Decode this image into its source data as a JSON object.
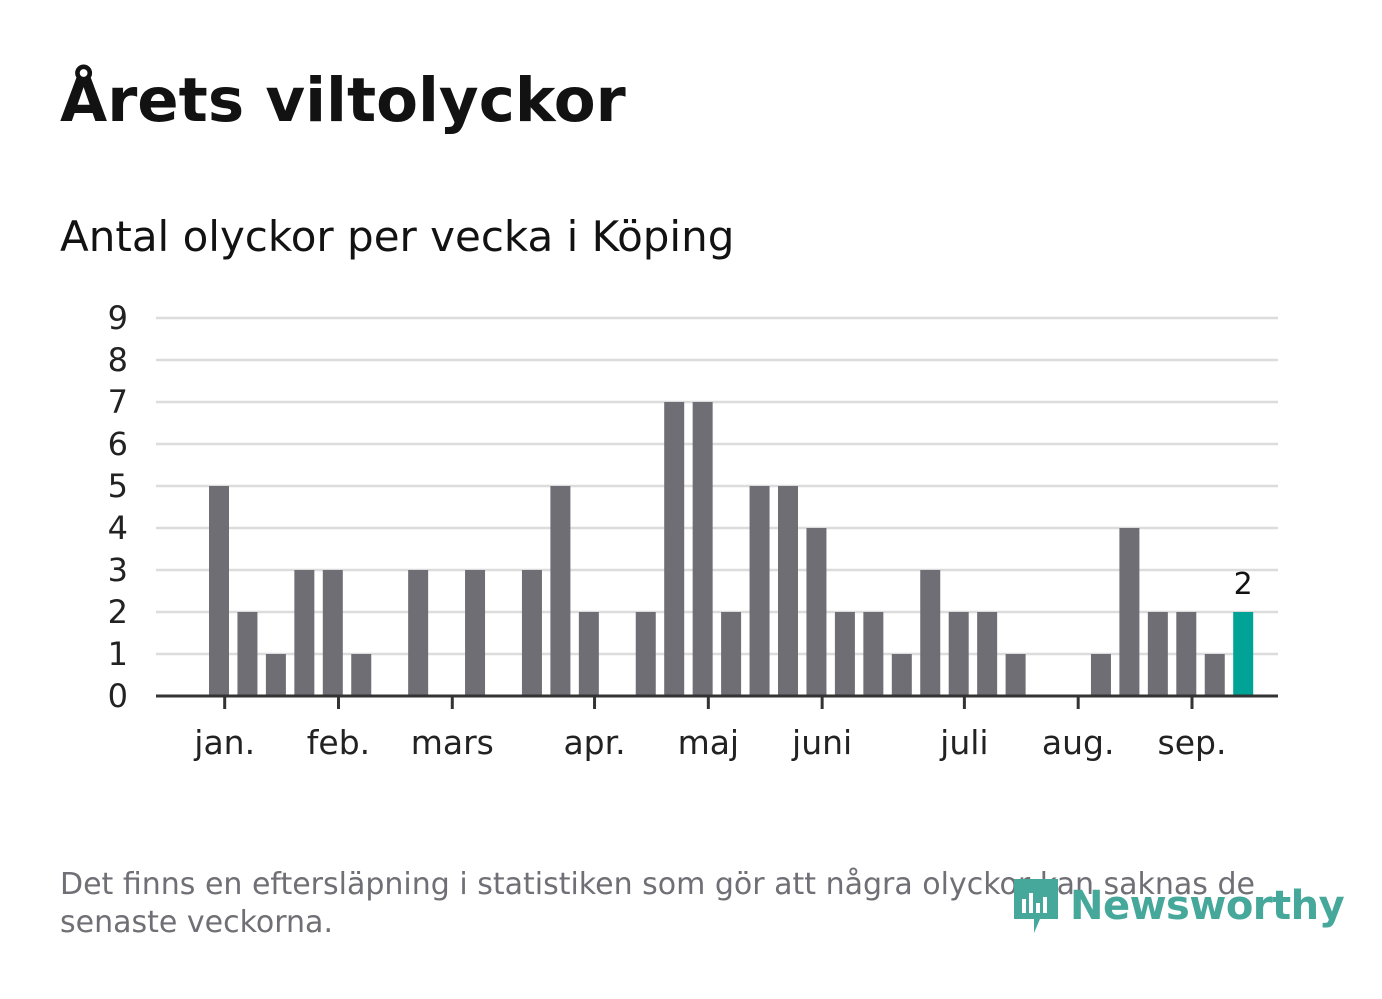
{
  "title": "Årets viltolyckor",
  "subtitle": "Antal olyckor per vecka i Köping",
  "footnote": "Det finns en eftersläpning i statistiken som gör att några olyckor kan saknas de senaste veckorna.",
  "brand": {
    "name": "Newsworthy",
    "color": "#46a89a",
    "icon": "newsworthy-logo-icon"
  },
  "colors": {
    "bar": "#6f6e74",
    "highlight": "#00a395",
    "grid": "#dcdcdc",
    "axis": "#333333"
  },
  "chart_data": {
    "type": "bar",
    "title": "Årets viltolyckor",
    "subtitle": "Antal olyckor per vecka i Köping",
    "xlabel": "",
    "ylabel": "",
    "ylim": [
      0,
      9
    ],
    "yticks": [
      0,
      1,
      2,
      3,
      4,
      5,
      6,
      7,
      8,
      9
    ],
    "grid": true,
    "weeks": [
      1,
      2,
      3,
      4,
      5,
      6,
      7,
      8,
      9,
      10,
      11,
      12,
      13,
      14,
      15,
      16,
      17,
      18,
      19,
      20,
      21,
      22,
      23,
      24,
      25,
      26,
      27,
      28,
      29,
      30,
      31,
      32,
      33,
      34,
      35,
      36,
      37
    ],
    "values": [
      5,
      2,
      1,
      3,
      3,
      1,
      0,
      3,
      0,
      3,
      0,
      3,
      5,
      2,
      0,
      2,
      7,
      7,
      2,
      5,
      5,
      4,
      2,
      2,
      1,
      3,
      2,
      2,
      1,
      0,
      0,
      1,
      4,
      2,
      2,
      1,
      2
    ],
    "highlight_last": true,
    "last_value_label": "2",
    "month_ticks": [
      {
        "label": "jan.",
        "week": 1.2
      },
      {
        "label": "feb.",
        "week": 5.2
      },
      {
        "label": "mars",
        "week": 9.2
      },
      {
        "label": "apr.",
        "week": 14.2
      },
      {
        "label": "maj",
        "week": 18.2
      },
      {
        "label": "juni",
        "week": 22.2
      },
      {
        "label": "juli",
        "week": 27.2
      },
      {
        "label": "aug.",
        "week": 31.2
      },
      {
        "label": "sep.",
        "week": 35.2
      }
    ]
  }
}
